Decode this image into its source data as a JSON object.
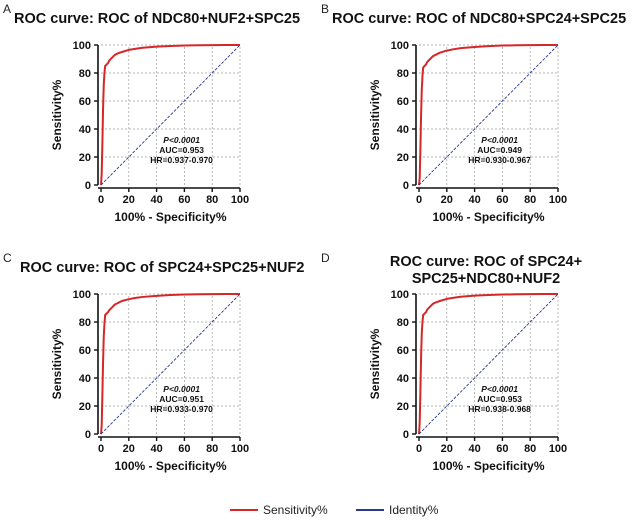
{
  "chart_data": [
    {
      "panel": "A",
      "type": "line",
      "title": "ROC curve: ROC of NDC80+NUF2+SPC25",
      "title_lines": [
        "ROC curve: ROC of NDC80+NUF2+SPC25"
      ],
      "xlabel": "100% - Specificity%",
      "ylabel": "Sensitivity%",
      "xlim": [
        0,
        100
      ],
      "ylim": [
        0,
        100
      ],
      "xticks": [
        "0",
        "20",
        "40",
        "60",
        "80",
        "100"
      ],
      "yticks": [
        "0",
        "20",
        "40",
        "60",
        "80",
        "100"
      ],
      "annotation": [
        "P<0.0001",
        "AUC=0.953",
        "HR=0.937-0.970"
      ],
      "series": [
        {
          "name": "Sensitivity%",
          "color": "#d62728",
          "x": [
            0,
            0.5,
            1,
            1.5,
            2,
            2.5,
            3,
            4,
            5,
            6,
            8,
            10,
            12,
            15,
            20,
            25,
            30,
            40,
            50,
            60,
            70,
            80,
            90,
            100
          ],
          "y": [
            0,
            8,
            30,
            55,
            72,
            80,
            85,
            86,
            87,
            89,
            91,
            93,
            94,
            95,
            96.5,
            97.3,
            98,
            98.8,
            99.3,
            99.6,
            99.8,
            99.9,
            100,
            100
          ]
        },
        {
          "name": "Identity%",
          "color": "#2b3a8f",
          "x": [
            0,
            100
          ],
          "y": [
            0,
            100
          ]
        }
      ]
    },
    {
      "panel": "B",
      "type": "line",
      "title": "ROC curve: ROC of NDC80+SPC24+SPC25",
      "title_lines": [
        "ROC curve: ROC of NDC80+SPC24+SPC25"
      ],
      "xlabel": "100% - Specificity%",
      "ylabel": "Sensitivity%",
      "xlim": [
        0,
        100
      ],
      "ylim": [
        0,
        100
      ],
      "xticks": [
        "0",
        "20",
        "40",
        "60",
        "80",
        "100"
      ],
      "yticks": [
        "0",
        "20",
        "40",
        "60",
        "80",
        "100"
      ],
      "annotation": [
        "P<0.0001",
        "AUC=0.949",
        "HR=0.930-0.967"
      ],
      "series": [
        {
          "name": "Sensitivity%",
          "color": "#d62728",
          "x": [
            0,
            0.5,
            1,
            1.5,
            2,
            2.5,
            3,
            4,
            5,
            6,
            8,
            10,
            12,
            15,
            20,
            25,
            30,
            40,
            50,
            60,
            70,
            80,
            90,
            100
          ],
          "y": [
            0,
            5,
            25,
            50,
            68,
            78,
            84,
            85,
            86,
            88,
            90,
            92,
            93,
            94.5,
            96,
            97,
            97.8,
            98.6,
            99.2,
            99.6,
            99.8,
            99.9,
            100,
            100
          ]
        },
        {
          "name": "Identity%",
          "color": "#2b3a8f",
          "x": [
            0,
            100
          ],
          "y": [
            0,
            100
          ]
        }
      ]
    },
    {
      "panel": "C",
      "type": "line",
      "title": "ROC curve: ROC of SPC24+SPC25+NUF2",
      "title_lines": [
        "ROC curve: ROC of SPC24+SPC25+NUF2"
      ],
      "xlabel": "100% - Specificity%",
      "ylabel": "Sensitivity%",
      "xlim": [
        0,
        100
      ],
      "ylim": [
        0,
        100
      ],
      "xticks": [
        "0",
        "20",
        "40",
        "60",
        "80",
        "100"
      ],
      "yticks": [
        "0",
        "20",
        "40",
        "60",
        "80",
        "100"
      ],
      "annotation": [
        "P<0.0001",
        "AUC=0.951",
        "HR=0.933-0.970"
      ],
      "series": [
        {
          "name": "Sensitivity%",
          "color": "#d62728",
          "x": [
            0,
            0.5,
            1,
            1.5,
            2,
            2.5,
            3,
            4,
            5,
            6,
            8,
            10,
            12,
            15,
            20,
            25,
            30,
            40,
            50,
            60,
            70,
            80,
            90,
            100
          ],
          "y": [
            0,
            6,
            28,
            52,
            70,
            79,
            85,
            86,
            87,
            88.5,
            90.5,
            92.5,
            93.5,
            95,
            96.3,
            97.2,
            97.9,
            98.7,
            99.3,
            99.6,
            99.8,
            99.9,
            100,
            100
          ]
        },
        {
          "name": "Identity%",
          "color": "#2b3a8f",
          "x": [
            0,
            100
          ],
          "y": [
            0,
            100
          ]
        }
      ]
    },
    {
      "panel": "D",
      "type": "line",
      "title": "ROC curve: ROC of SPC24+ SPC25+NDC80+NUF2",
      "title_lines": [
        "ROC curve: ROC of SPC24+",
        "SPC25+NDC80+NUF2"
      ],
      "xlabel": "100% - Specificity%",
      "ylabel": "Sensitivity%",
      "xlim": [
        0,
        100
      ],
      "ylim": [
        0,
        100
      ],
      "xticks": [
        "0",
        "20",
        "40",
        "60",
        "80",
        "100"
      ],
      "yticks": [
        "0",
        "20",
        "40",
        "60",
        "80",
        "100"
      ],
      "annotation": [
        "P<0.0001",
        "AUC=0.953",
        "HR=0.938-0.968"
      ],
      "series": [
        {
          "name": "Sensitivity%",
          "color": "#d62728",
          "x": [
            0,
            0.5,
            1,
            1.5,
            2,
            2.5,
            3,
            4,
            5,
            6,
            8,
            10,
            12,
            15,
            20,
            25,
            30,
            40,
            50,
            60,
            70,
            80,
            90,
            100
          ],
          "y": [
            0,
            8,
            30,
            55,
            72,
            80,
            85,
            86,
            87,
            89,
            91,
            93,
            94,
            95,
            96.5,
            97.3,
            98,
            98.8,
            99.3,
            99.6,
            99.8,
            99.9,
            100,
            100
          ]
        },
        {
          "name": "Identity%",
          "color": "#2b3a8f",
          "x": [
            0,
            100
          ],
          "y": [
            0,
            100
          ]
        }
      ]
    }
  ],
  "legend": {
    "items": [
      {
        "label": "Sensitivity%",
        "color": "#d62728"
      },
      {
        "label": "Identity%",
        "color": "#2b3a8f"
      }
    ]
  }
}
